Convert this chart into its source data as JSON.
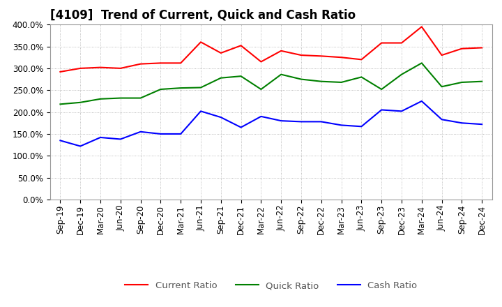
{
  "title": "[4109]  Trend of Current, Quick and Cash Ratio",
  "labels": [
    "Sep-19",
    "Dec-19",
    "Mar-20",
    "Jun-20",
    "Sep-20",
    "Dec-20",
    "Mar-21",
    "Jun-21",
    "Sep-21",
    "Dec-21",
    "Mar-22",
    "Jun-22",
    "Sep-22",
    "Dec-22",
    "Mar-23",
    "Jun-23",
    "Sep-23",
    "Dec-23",
    "Mar-24",
    "Jun-24",
    "Sep-24",
    "Dec-24"
  ],
  "current_ratio": [
    292,
    300,
    302,
    300,
    310,
    312,
    312,
    360,
    335,
    352,
    315,
    340,
    330,
    328,
    325,
    320,
    358,
    358,
    395,
    330,
    345,
    347
  ],
  "quick_ratio": [
    218,
    222,
    230,
    232,
    232,
    252,
    255,
    256,
    278,
    282,
    252,
    286,
    275,
    270,
    268,
    280,
    252,
    286,
    312,
    258,
    268,
    270
  ],
  "cash_ratio": [
    135,
    122,
    142,
    138,
    155,
    150,
    150,
    202,
    188,
    165,
    190,
    180,
    178,
    178,
    170,
    167,
    205,
    202,
    225,
    183,
    175,
    172
  ],
  "current_color": "#FF0000",
  "quick_color": "#008000",
  "cash_color": "#0000FF",
  "bg_color": "#FFFFFF",
  "plot_bg_color": "#FFFFFF",
  "ylim": [
    0,
    400
  ],
  "yticks": [
    0,
    50,
    100,
    150,
    200,
    250,
    300,
    350,
    400
  ],
  "legend_labels": [
    "Current Ratio",
    "Quick Ratio",
    "Cash Ratio"
  ],
  "title_fontsize": 12,
  "tick_fontsize": 8.5,
  "legend_fontsize": 9.5
}
